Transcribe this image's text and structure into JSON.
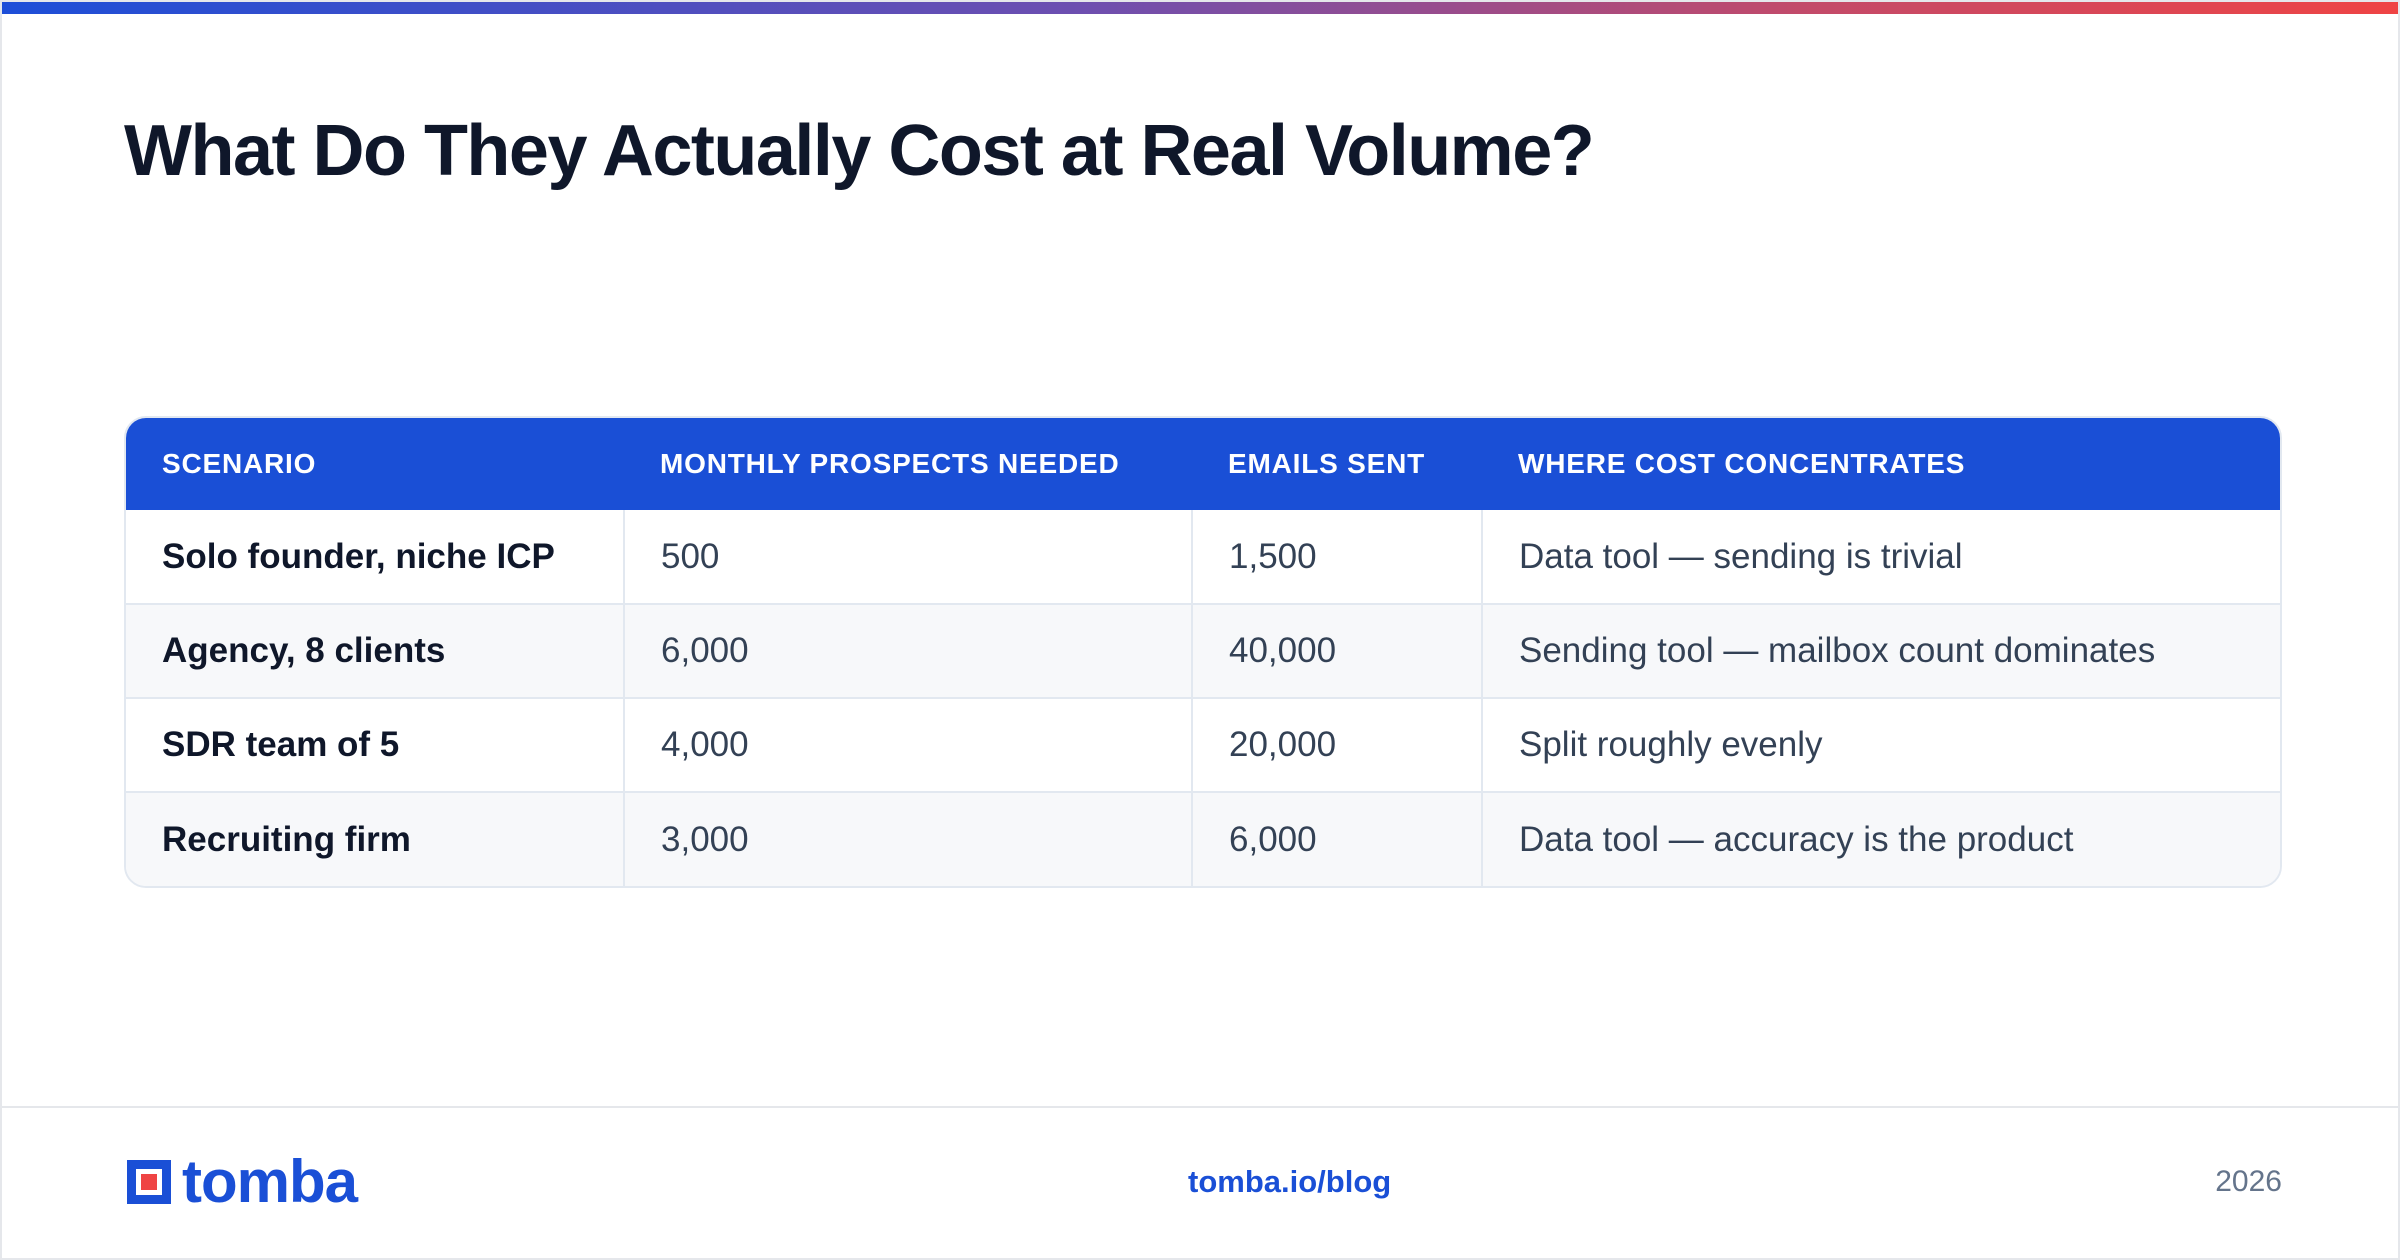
{
  "header": {
    "title": "What Do They Actually Cost at Real Volume?"
  },
  "table": {
    "columns": [
      "SCENARIO",
      "MONTHLY PROSPECTS NEEDED",
      "EMAILS SENT",
      "WHERE COST CONCENTRATES"
    ],
    "rows": [
      [
        "Solo founder, niche ICP",
        "500",
        "1,500",
        "Data tool — sending is trivial"
      ],
      [
        "Agency, 8 clients",
        "6,000",
        "40,000",
        "Sending tool — mailbox count dominates"
      ],
      [
        "SDR team of 5",
        "4,000",
        "20,000",
        "Split roughly evenly"
      ],
      [
        "Recruiting firm",
        "3,000",
        "6,000",
        "Data tool — accuracy is the product"
      ]
    ]
  },
  "footer": {
    "brand": "tomba",
    "link": "tomba.io/blog",
    "year": "2026"
  },
  "colors": {
    "accent": "#1a4fd6",
    "title": "#0f172a",
    "body_text": "#334155",
    "muted": "#64748b",
    "logo_red": "#ef4444",
    "gradient_start": "#1d4ed8",
    "gradient_end": "#ef4444"
  },
  "icons": {
    "brand_logo": "tomba-logo-icon"
  }
}
